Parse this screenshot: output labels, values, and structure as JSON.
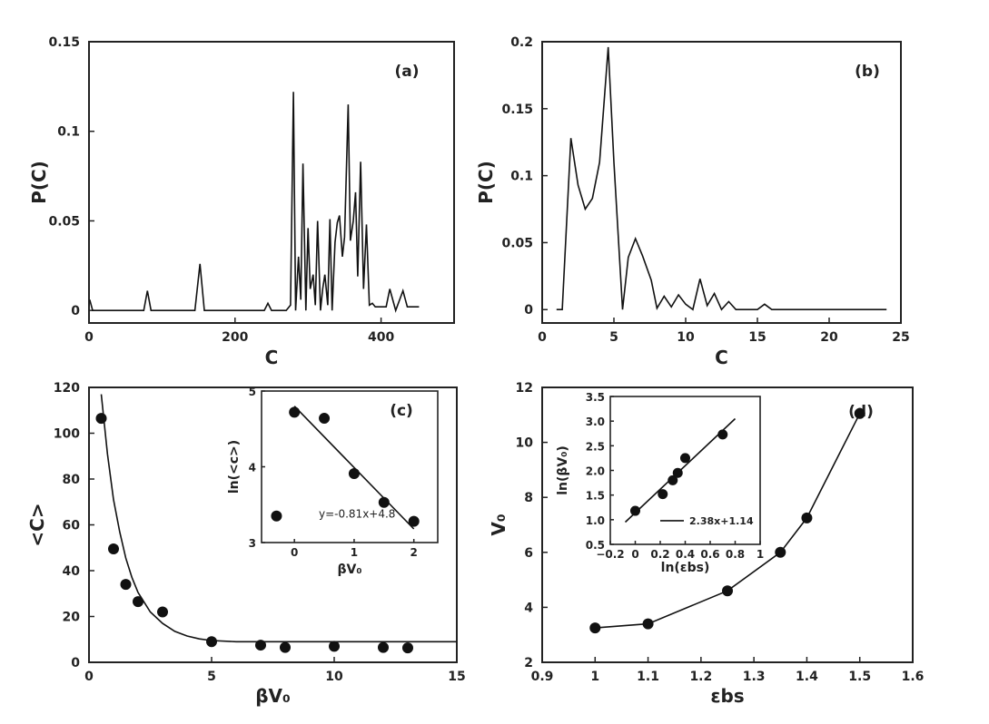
{
  "chart_data": [
    {
      "id": "a",
      "type": "line",
      "panel_label": "(a)",
      "xlabel": "C",
      "ylabel": "P(C)",
      "xlim": [
        0,
        500
      ],
      "ylim": [
        -0.007,
        0.15
      ],
      "xticks": [
        0,
        200,
        400
      ],
      "yticks": [
        0,
        0.05,
        0.1,
        0.15
      ],
      "x": [
        1,
        5,
        10,
        20,
        40,
        60,
        75,
        80,
        85,
        95,
        110,
        130,
        145,
        152,
        158,
        170,
        200,
        240,
        245,
        250,
        255,
        270,
        276,
        280,
        283,
        287,
        290,
        293,
        297,
        300,
        303,
        307,
        310,
        313,
        317,
        320,
        323,
        327,
        330,
        333,
        337,
        340,
        343,
        347,
        350,
        355,
        358,
        362,
        365,
        368,
        372,
        376,
        380,
        384,
        388,
        392,
        396,
        400,
        403,
        407,
        412,
        420,
        430,
        436,
        441,
        447,
        452
      ],
      "y": [
        0.006,
        0,
        0,
        0,
        0,
        0,
        0,
        0.011,
        0,
        0,
        0,
        0,
        0,
        0.026,
        0,
        0,
        0,
        0,
        0.004,
        0,
        0,
        0,
        0.003,
        0.122,
        0,
        0.03,
        0.006,
        0.082,
        0,
        0.046,
        0.012,
        0.02,
        0.003,
        0.05,
        0,
        0.012,
        0.02,
        0.003,
        0.051,
        0,
        0.038,
        0.049,
        0.053,
        0.03,
        0.041,
        0.115,
        0.039,
        0.05,
        0.066,
        0.019,
        0.083,
        0.012,
        0.048,
        0.003,
        0.004,
        0.002,
        0.002,
        0.002,
        0.002,
        0.002,
        0.012,
        0,
        0.011,
        0.002,
        0.002,
        0.002,
        0.002
      ]
    },
    {
      "id": "b",
      "type": "line",
      "panel_label": "(b)",
      "xlabel": "C",
      "ylabel": "P(C)",
      "xlim": [
        0,
        25
      ],
      "ylim": [
        -0.01,
        0.2
      ],
      "xticks": [
        0,
        5,
        10,
        15,
        20,
        25
      ],
      "yticks": [
        0,
        0.05,
        0.1,
        0.15,
        0.2
      ],
      "x": [
        1,
        1.4,
        2,
        2.5,
        3,
        3.5,
        4,
        4.6,
        5,
        5.6,
        6,
        6.5,
        7,
        7.6,
        8,
        8.5,
        9,
        9.5,
        10,
        10.5,
        11,
        11.5,
        12,
        12.5,
        13,
        13.5,
        14,
        14.5,
        15,
        15.5,
        16,
        17,
        18,
        19,
        20,
        21,
        22,
        23,
        24
      ],
      "y": [
        0,
        0,
        0.128,
        0.093,
        0.075,
        0.083,
        0.11,
        0.196,
        0.11,
        0,
        0.039,
        0.053,
        0.04,
        0.022,
        0.001,
        0.01,
        0.002,
        0.011,
        0.004,
        0,
        0.023,
        0.003,
        0.012,
        0,
        0.006,
        0,
        0,
        0,
        0,
        0.004,
        0,
        0,
        0,
        0,
        0,
        0,
        0,
        0,
        0
      ]
    },
    {
      "id": "c",
      "type": "scatter",
      "panel_label": "",
      "xlabel": "βV₀",
      "ylabel": "<C>",
      "xlim": [
        0,
        15
      ],
      "ylim": [
        0,
        120
      ],
      "xticks": [
        0,
        5,
        10,
        15
      ],
      "yticks": [
        0,
        20,
        40,
        60,
        80,
        100,
        120
      ],
      "points": {
        "x": [
          0.5,
          1,
          1.5,
          2,
          3,
          5,
          7,
          8,
          10,
          12,
          13
        ],
        "y": [
          106.5,
          49.5,
          34,
          26.5,
          22,
          9,
          7.5,
          6.5,
          7,
          6.5,
          6.3
        ]
      },
      "fit_curve": {
        "x": [
          0.5,
          0.75,
          1,
          1.25,
          1.5,
          1.75,
          2,
          2.5,
          3,
          3.5,
          4,
          4.5,
          5,
          6,
          7,
          8,
          9,
          10,
          11,
          12,
          13,
          14,
          15
        ],
        "y": [
          117,
          91,
          71,
          57,
          45.5,
          37,
          30.5,
          22,
          17,
          13.5,
          11.5,
          10.2,
          9.5,
          9,
          9,
          9,
          9,
          9,
          9,
          9,
          9,
          9,
          9
        ]
      }
    },
    {
      "id": "c_inset",
      "type": "scatter",
      "panel_label": "(c)",
      "xlabel": "βV₀",
      "ylabel": "ln(<c>)",
      "xlim": [
        -0.55,
        2.4
      ],
      "ylim": [
        3,
        5
      ],
      "xticks": [
        0,
        1,
        2
      ],
      "yticks": [
        3,
        4,
        5
      ],
      "points": {
        "x": [
          -0.3,
          0,
          0.5,
          1,
          1.5,
          2
        ],
        "y": [
          3.35,
          4.72,
          4.64,
          3.91,
          3.53,
          3.28
        ]
      },
      "fit_line": {
        "x": [
          0,
          2
        ],
        "y": [
          4.8,
          3.18
        ]
      },
      "legend": "y=-0.81x+4.8"
    },
    {
      "id": "d",
      "type": "line",
      "panel_label": "(d)",
      "xlabel": "εbs",
      "ylabel": "V₀",
      "xlim": [
        0.9,
        1.6
      ],
      "ylim": [
        2,
        12
      ],
      "xticks": [
        0.9,
        1,
        1.1,
        1.2,
        1.3,
        1.4,
        1.5,
        1.6
      ],
      "yticks": [
        2,
        4,
        6,
        8,
        10,
        12
      ],
      "points": {
        "x": [
          1,
          1.1,
          1.25,
          1.35,
          1.4,
          1.5
        ],
        "y": [
          3.25,
          3.4,
          4.6,
          6,
          7.25,
          11.05
        ]
      }
    },
    {
      "id": "d_inset",
      "type": "scatter",
      "panel_label": "",
      "xlabel": "ln(εbs)",
      "ylabel": "ln(βV₀)",
      "xlim": [
        -0.2,
        1
      ],
      "ylim": [
        0.5,
        3.5
      ],
      "xticks": [
        -0.2,
        0,
        0.2,
        0.4,
        0.6,
        0.8,
        1
      ],
      "yticks": [
        0.5,
        1,
        1.5,
        2,
        2.5,
        3,
        3.5
      ],
      "points": {
        "x": [
          0,
          0.22,
          0.3,
          0.34,
          0.4,
          0.7
        ],
        "y": [
          1.18,
          1.52,
          1.8,
          1.95,
          2.25,
          2.73
        ]
      },
      "fit_line": {
        "x": [
          -0.08,
          0.8
        ],
        "y": [
          0.95,
          3.05
        ]
      },
      "legend": "2.38x+1.14"
    }
  ]
}
